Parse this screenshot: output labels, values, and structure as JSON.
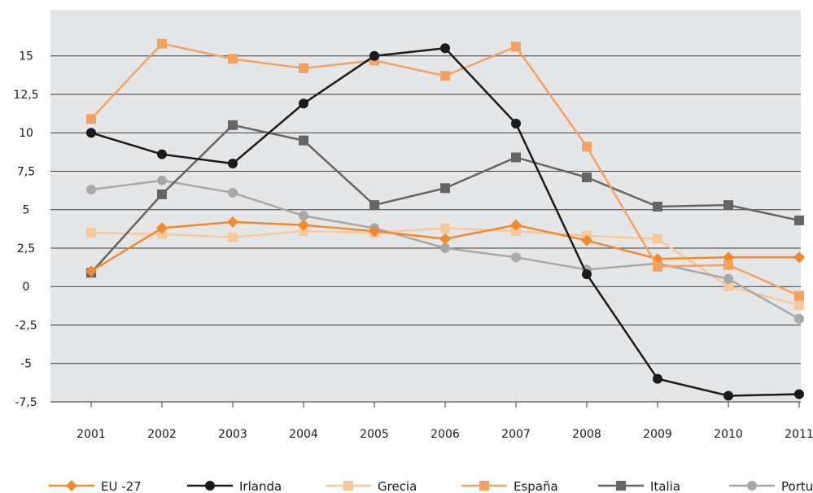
{
  "chart_data": {
    "type": "line",
    "title": "",
    "xlabel": "",
    "ylabel": "",
    "categories": [
      "2001",
      "2002",
      "2003",
      "2004",
      "2005",
      "2006",
      "2007",
      "2008",
      "2009",
      "2010",
      "2011"
    ],
    "ylim": [
      -7.5,
      18
    ],
    "yticks": [
      -7.5,
      -5,
      -2.5,
      0,
      2.5,
      5,
      7.5,
      10,
      12.5,
      15
    ],
    "ytick_labels": [
      "-7,5",
      "-5",
      "-2,5",
      "0",
      "2,5",
      "5",
      "7,5",
      "10",
      "12,5",
      "15"
    ],
    "grid": true,
    "legend_position": "bottom",
    "plot_background": "#e5e6e8",
    "series": [
      {
        "name": "EU -27",
        "color": "#f08a2c",
        "marker": "diamond",
        "values": [
          1.0,
          3.8,
          4.2,
          4.0,
          3.6,
          3.1,
          4.0,
          3.0,
          1.8,
          1.9,
          1.9
        ]
      },
      {
        "name": "Irlanda",
        "color": "#1a1a1a",
        "marker": "circle",
        "values": [
          10.0,
          8.6,
          8.0,
          11.9,
          15.0,
          15.5,
          10.6,
          0.8,
          -6.0,
          -7.1,
          -7.0
        ]
      },
      {
        "name": "Grecia",
        "color": "#f9c898",
        "marker": "square",
        "values": [
          3.5,
          3.4,
          3.2,
          3.6,
          3.5,
          3.8,
          3.6,
          3.3,
          3.1,
          0.0,
          -1.2
        ]
      },
      {
        "name": "España",
        "color": "#f5a160",
        "marker": "square",
        "values": [
          10.9,
          15.8,
          14.8,
          14.2,
          14.7,
          13.7,
          15.6,
          9.1,
          1.3,
          1.4,
          -0.6
        ]
      },
      {
        "name": "Italia",
        "color": "#656565",
        "marker": "square",
        "values": [
          0.9,
          6.0,
          10.5,
          9.5,
          5.3,
          6.4,
          8.4,
          7.1,
          5.2,
          5.3,
          4.3
        ]
      },
      {
        "name": "Portugal",
        "color": "#a8a8a8",
        "marker": "circle",
        "values": [
          6.3,
          6.9,
          6.1,
          4.6,
          3.8,
          2.5,
          1.9,
          1.1,
          1.5,
          0.5,
          -2.1
        ]
      }
    ]
  }
}
